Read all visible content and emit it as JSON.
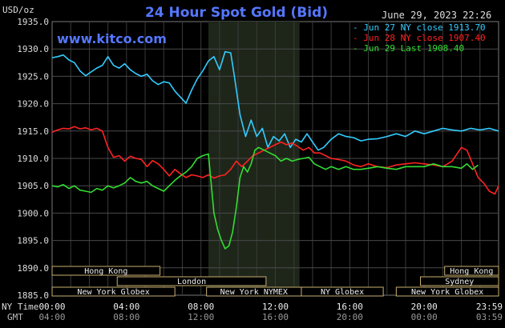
{
  "chart_data": {
    "type": "line",
    "title": "24 Hour Spot Gold (Bid)",
    "watermark": "www.kitco.com",
    "ylabel": "USD/oz",
    "datetime": "June 29, 2023 22:26",
    "ylim": [
      1885,
      1935
    ],
    "yticks": [
      "1935.0",
      "1930.0",
      "1925.0",
      "1920.0",
      "1915.0",
      "1910.0",
      "1905.0",
      "1900.0",
      "1895.0",
      "1890.0",
      "1885.0"
    ],
    "xlim_hours": [
      0,
      24
    ],
    "ny_time_label": "NY Time",
    "gmt_label": "GMT",
    "ny_ticks": [
      "00:00",
      "04:00",
      "08:00",
      "12:00",
      "16:00",
      "20:00",
      "23:59"
    ],
    "gmt_ticks": [
      "04:00",
      "08:00",
      "12:00",
      "16:00",
      "20:00",
      "00:00",
      "03:59"
    ],
    "legend": [
      {
        "text": "- Jun 27 NY close 1913.70",
        "color": "#33ccff"
      },
      {
        "text": "- Jun 28 NY close 1907.40",
        "color": "#ff2222"
      },
      {
        "text": "- Jun 29 Last 1908.40",
        "color": "#33dd33"
      }
    ],
    "shaded_region_hours": [
      8.4,
      13.3
    ],
    "sessions": [
      {
        "label": "Hong Kong",
        "start": 0,
        "end": 5.8,
        "row": 0
      },
      {
        "label": "London",
        "start": 3.5,
        "end": 11.5,
        "row": 1
      },
      {
        "label": "New York Globex",
        "start": 0,
        "end": 6.6,
        "row": 2
      },
      {
        "label": "New York NYMEX",
        "start": 8.3,
        "end": 13.4,
        "row": 2
      },
      {
        "label": "NY Globex",
        "start": 13.4,
        "end": 17.8,
        "row": 2
      },
      {
        "label": "Hong Kong",
        "start": 21.1,
        "end": 24,
        "row": 0
      },
      {
        "label": "Sydney",
        "start": 19.8,
        "end": 24,
        "row": 1
      },
      {
        "label": "New York Globex",
        "start": 18.5,
        "end": 24,
        "row": 2
      }
    ],
    "series": [
      {
        "name": "Jun 27",
        "color": "#33ccff",
        "x": [
          0,
          0.3,
          0.6,
          0.9,
          1.2,
          1.5,
          1.8,
          2.1,
          2.4,
          2.7,
          3.0,
          3.3,
          3.6,
          3.9,
          4.2,
          4.5,
          4.8,
          5.1,
          5.4,
          5.7,
          6.0,
          6.3,
          6.6,
          6.9,
          7.2,
          7.5,
          7.8,
          8.1,
          8.4,
          8.7,
          9.0,
          9.3,
          9.6,
          9.8,
          10.1,
          10.4,
          10.7,
          11.0,
          11.3,
          11.6,
          11.9,
          12.2,
          12.5,
          12.8,
          13.1,
          13.4,
          13.7,
          14.0,
          14.3,
          14.6,
          15.0,
          15.4,
          15.8,
          16.2,
          16.6,
          17.0,
          17.5,
          18.0,
          18.5,
          19.0,
          19.5,
          20.0,
          20.5,
          21.0,
          21.5,
          22.0,
          22.5,
          23.0,
          23.5,
          24.0
        ],
        "values": [
          1928.4,
          1928.6,
          1928.9,
          1928.0,
          1927.5,
          1926.0,
          1925.1,
          1925.8,
          1926.5,
          1927.0,
          1928.6,
          1927.0,
          1926.5,
          1927.3,
          1926.2,
          1925.5,
          1925.0,
          1925.4,
          1924.2,
          1923.5,
          1924.0,
          1923.8,
          1922.3,
          1921.2,
          1920.1,
          1922.5,
          1924.5,
          1926.0,
          1927.8,
          1928.6,
          1926.2,
          1929.5,
          1929.3,
          1925.0,
          1918.0,
          1914.0,
          1917.0,
          1914.0,
          1915.5,
          1912.0,
          1914.0,
          1913.2,
          1914.5,
          1912.0,
          1913.5,
          1913.0,
          1914.5,
          1913.0,
          1911.5,
          1912.0,
          1913.5,
          1914.5,
          1914.0,
          1913.8,
          1913.2,
          1913.5,
          1913.6,
          1914.0,
          1914.5,
          1914.0,
          1915.0,
          1914.5,
          1915.0,
          1915.5,
          1915.2,
          1915.0,
          1915.5,
          1915.2,
          1915.5,
          1915.0
        ]
      },
      {
        "name": "Jun 28",
        "color": "#ff2222",
        "x": [
          0,
          0.3,
          0.6,
          0.9,
          1.2,
          1.5,
          1.8,
          2.1,
          2.4,
          2.7,
          3.0,
          3.3,
          3.6,
          3.9,
          4.2,
          4.5,
          4.8,
          5.1,
          5.4,
          5.7,
          6.0,
          6.3,
          6.6,
          6.9,
          7.2,
          7.5,
          7.8,
          8.1,
          8.4,
          8.7,
          9.0,
          9.3,
          9.6,
          9.9,
          10.2,
          10.5,
          10.8,
          11.1,
          11.4,
          11.7,
          12.0,
          12.3,
          12.6,
          12.9,
          13.2,
          13.5,
          13.8,
          14.1,
          14.4,
          14.7,
          15.0,
          15.4,
          15.8,
          16.2,
          16.6,
          17.0,
          17.5,
          18.0,
          18.5,
          19.0,
          19.5,
          20.0,
          20.5,
          21.0,
          21.5,
          22.0,
          22.3,
          22.6,
          22.9,
          23.2,
          23.5,
          23.8,
          24.0
        ],
        "values": [
          1914.8,
          1915.2,
          1915.5,
          1915.4,
          1915.8,
          1915.4,
          1915.6,
          1915.2,
          1915.5,
          1915.0,
          1912.0,
          1910.2,
          1910.5,
          1909.5,
          1910.4,
          1910.0,
          1909.8,
          1908.5,
          1909.6,
          1909.0,
          1908.0,
          1906.8,
          1908.0,
          1907.2,
          1906.5,
          1907.0,
          1906.8,
          1906.5,
          1907.0,
          1906.4,
          1906.8,
          1907.0,
          1908.0,
          1909.5,
          1908.5,
          1909.5,
          1910.5,
          1911.0,
          1911.5,
          1912.0,
          1912.5,
          1913.0,
          1912.5,
          1912.8,
          1912.2,
          1911.5,
          1912.0,
          1911.0,
          1911.0,
          1910.5,
          1910.0,
          1909.8,
          1909.5,
          1908.8,
          1908.5,
          1909.0,
          1908.5,
          1908.3,
          1908.8,
          1909.0,
          1909.2,
          1909.0,
          1908.8,
          1908.5,
          1909.5,
          1912.0,
          1911.5,
          1909.0,
          1906.5,
          1905.5,
          1904.0,
          1903.5,
          1905.0
        ]
      },
      {
        "name": "Jun 29",
        "color": "#33dd33",
        "x": [
          0,
          0.3,
          0.6,
          0.9,
          1.2,
          1.5,
          1.8,
          2.1,
          2.4,
          2.7,
          3.0,
          3.3,
          3.6,
          3.9,
          4.2,
          4.5,
          4.8,
          5.1,
          5.4,
          5.7,
          6.0,
          6.3,
          6.6,
          6.9,
          7.2,
          7.5,
          7.8,
          8.1,
          8.4,
          8.7,
          8.9,
          9.1,
          9.3,
          9.5,
          9.7,
          9.9,
          10.1,
          10.3,
          10.5,
          10.7,
          10.9,
          11.1,
          11.4,
          11.7,
          12.0,
          12.3,
          12.6,
          12.9,
          13.2,
          13.5,
          13.8,
          14.1,
          14.4,
          14.7,
          15.0,
          15.4,
          15.8,
          16.2,
          16.6,
          17.0,
          17.5,
          18.0,
          18.5,
          19.0,
          19.5,
          20.0,
          20.5,
          21.0,
          21.5,
          22.0,
          22.3,
          22.6,
          22.9
        ],
        "values": [
          1905.0,
          1904.8,
          1905.2,
          1904.5,
          1905.0,
          1904.2,
          1904.0,
          1903.8,
          1904.5,
          1904.2,
          1905.0,
          1904.6,
          1905.0,
          1905.5,
          1906.5,
          1905.8,
          1905.5,
          1905.8,
          1905.0,
          1904.5,
          1904.0,
          1905.0,
          1906.0,
          1906.8,
          1907.5,
          1908.5,
          1910.0,
          1910.5,
          1910.8,
          1900.0,
          1897.0,
          1895.0,
          1893.5,
          1894.0,
          1896.5,
          1901.0,
          1906.5,
          1908.5,
          1907.5,
          1909.0,
          1911.5,
          1912.0,
          1911.5,
          1911.0,
          1910.5,
          1909.5,
          1910.0,
          1909.5,
          1909.8,
          1910.0,
          1910.2,
          1909.0,
          1908.5,
          1908.0,
          1908.5,
          1908.0,
          1908.5,
          1908.0,
          1908.0,
          1908.2,
          1908.5,
          1908.2,
          1908.0,
          1908.5,
          1908.5,
          1908.5,
          1909.0,
          1908.5,
          1908.5,
          1908.2,
          1909.0,
          1908.0,
          1908.8
        ]
      }
    ]
  }
}
